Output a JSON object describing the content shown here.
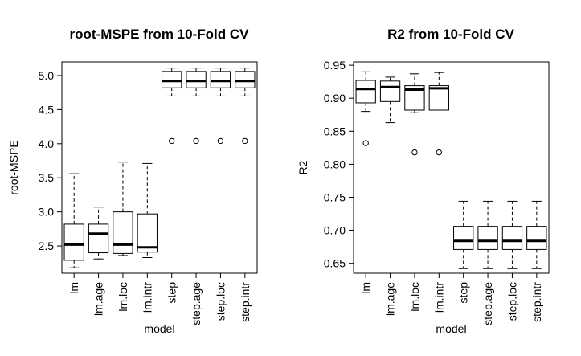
{
  "chart_data": [
    {
      "type": "boxplot",
      "title": "root-MSPE from 10-Fold CV",
      "xlabel": "model",
      "ylabel": "root-MSPE",
      "ylim": [
        2.1,
        5.2
      ],
      "yticks": [
        "2.5",
        "3.0",
        "3.5",
        "4.0",
        "4.5",
        "5.0"
      ],
      "ytick_values": [
        2.5,
        3.0,
        3.5,
        4.0,
        4.5,
        5.0
      ],
      "categories": [
        "lm",
        "lm.age",
        "lm.loc",
        "lm.intr",
        "step",
        "step.age",
        "step.loc",
        "step.intr"
      ],
      "boxes": [
        {
          "whisker_low": 2.18,
          "q1": 2.29,
          "median": 2.52,
          "q3": 2.82,
          "whisker_high": 3.56,
          "outliers": []
        },
        {
          "whisker_low": 2.31,
          "q1": 2.4,
          "median": 2.68,
          "q3": 2.82,
          "whisker_high": 3.07,
          "outliers": []
        },
        {
          "whisker_low": 2.36,
          "q1": 2.39,
          "median": 2.52,
          "q3": 3.0,
          "whisker_high": 3.73,
          "outliers": []
        },
        {
          "whisker_low": 2.33,
          "q1": 2.41,
          "median": 2.48,
          "q3": 2.97,
          "whisker_high": 3.71,
          "outliers": []
        },
        {
          "whisker_low": 4.7,
          "q1": 4.82,
          "median": 4.92,
          "q3": 5.06,
          "whisker_high": 5.11,
          "outliers": [
            4.04
          ]
        },
        {
          "whisker_low": 4.7,
          "q1": 4.82,
          "median": 4.92,
          "q3": 5.06,
          "whisker_high": 5.11,
          "outliers": [
            4.04
          ]
        },
        {
          "whisker_low": 4.7,
          "q1": 4.82,
          "median": 4.92,
          "q3": 5.06,
          "whisker_high": 5.11,
          "outliers": [
            4.04
          ]
        },
        {
          "whisker_low": 4.7,
          "q1": 4.82,
          "median": 4.92,
          "q3": 5.06,
          "whisker_high": 5.11,
          "outliers": [
            4.04
          ]
        }
      ],
      "grid": false,
      "legend": "none"
    },
    {
      "type": "boxplot",
      "title": "R2 from 10-Fold CV",
      "xlabel": "model",
      "ylabel": "R2",
      "ylim": [
        0.635,
        0.955
      ],
      "yticks": [
        "0.65",
        "0.70",
        "0.75",
        "0.80",
        "0.85",
        "0.90",
        "0.95"
      ],
      "ytick_values": [
        0.65,
        0.7,
        0.75,
        0.8,
        0.85,
        0.9,
        0.95
      ],
      "categories": [
        "lm",
        "lm.age",
        "lm.loc",
        "lm.intr",
        "step",
        "step.age",
        "step.loc",
        "step.intr"
      ],
      "boxes": [
        {
          "whisker_low": 0.88,
          "q1": 0.893,
          "median": 0.914,
          "q3": 0.927,
          "whisker_high": 0.94,
          "outliers": [
            0.832
          ]
        },
        {
          "whisker_low": 0.863,
          "q1": 0.895,
          "median": 0.917,
          "q3": 0.926,
          "whisker_high": 0.932,
          "outliers": []
        },
        {
          "whisker_low": 0.878,
          "q1": 0.882,
          "median": 0.913,
          "q3": 0.919,
          "whisker_high": 0.937,
          "outliers": [
            0.818
          ]
        },
        {
          "whisker_low": 0.882,
          "q1": 0.882,
          "median": 0.915,
          "q3": 0.919,
          "whisker_high": 0.939,
          "outliers": [
            0.818
          ]
        },
        {
          "whisker_low": 0.642,
          "q1": 0.671,
          "median": 0.684,
          "q3": 0.706,
          "whisker_high": 0.744,
          "outliers": []
        },
        {
          "whisker_low": 0.642,
          "q1": 0.671,
          "median": 0.684,
          "q3": 0.706,
          "whisker_high": 0.744,
          "outliers": []
        },
        {
          "whisker_low": 0.642,
          "q1": 0.671,
          "median": 0.684,
          "q3": 0.706,
          "whisker_high": 0.744,
          "outliers": []
        },
        {
          "whisker_low": 0.642,
          "q1": 0.671,
          "median": 0.684,
          "q3": 0.706,
          "whisker_high": 0.744,
          "outliers": []
        }
      ],
      "grid": false,
      "legend": "none"
    }
  ]
}
